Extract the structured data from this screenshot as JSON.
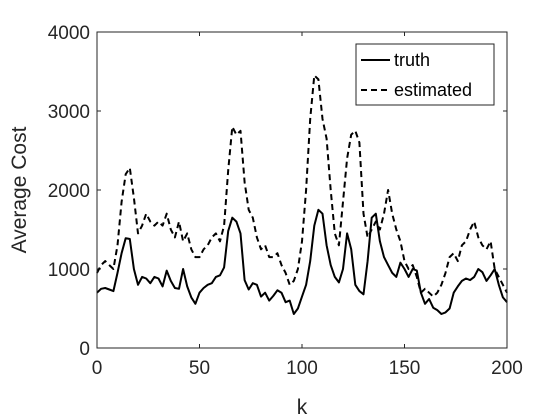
{
  "chart_data": {
    "type": "line",
    "title": "",
    "xlabel": "k",
    "ylabel": "Average Cost",
    "xlim": [
      0,
      200
    ],
    "ylim": [
      0,
      4000
    ],
    "xticks": [
      0,
      50,
      100,
      150,
      200
    ],
    "yticks": [
      0,
      1000,
      2000,
      3000,
      4000
    ],
    "grid": false,
    "legend_position": "top-right",
    "series": [
      {
        "name": "truth",
        "style": "solid",
        "color": "#000000",
        "x": [
          0,
          2,
          4,
          6,
          8,
          10,
          12,
          14,
          16,
          18,
          20,
          22,
          24,
          26,
          28,
          30,
          32,
          34,
          36,
          38,
          40,
          42,
          44,
          46,
          48,
          50,
          52,
          54,
          56,
          58,
          60,
          62,
          64,
          66,
          68,
          70,
          72,
          74,
          76,
          78,
          80,
          82,
          84,
          86,
          88,
          90,
          92,
          94,
          96,
          98,
          100,
          102,
          104,
          106,
          108,
          110,
          112,
          114,
          116,
          118,
          120,
          122,
          124,
          126,
          128,
          130,
          132,
          134,
          136,
          138,
          140,
          142,
          144,
          146,
          148,
          150,
          152,
          154,
          156,
          158,
          160,
          162,
          164,
          166,
          168,
          170,
          172,
          174,
          176,
          178,
          180,
          182,
          184,
          186,
          188,
          190,
          192,
          194,
          196,
          198,
          200
        ],
        "y": [
          700,
          750,
          760,
          740,
          720,
          950,
          1200,
          1390,
          1380,
          1000,
          800,
          900,
          880,
          820,
          900,
          880,
          780,
          980,
          850,
          760,
          750,
          1000,
          780,
          640,
          560,
          700,
          760,
          800,
          820,
          900,
          920,
          1020,
          1480,
          1650,
          1600,
          1450,
          860,
          740,
          820,
          800,
          650,
          700,
          600,
          660,
          730,
          700,
          580,
          600,
          430,
          500,
          650,
          800,
          1100,
          1550,
          1750,
          1700,
          1300,
          1050,
          900,
          830,
          1000,
          1450,
          1250,
          800,
          720,
          680,
          1100,
          1650,
          1700,
          1350,
          1150,
          1050,
          950,
          900,
          1080,
          1000,
          900,
          1000,
          980,
          700,
          560,
          620,
          510,
          480,
          430,
          450,
          500,
          700,
          780,
          850,
          880,
          860,
          900,
          1000,
          960,
          850,
          920,
          1000,
          800,
          640,
          580
        ]
      },
      {
        "name": "estimated",
        "style": "dashed",
        "color": "#000000",
        "x": [
          0,
          2,
          4,
          6,
          8,
          10,
          12,
          14,
          16,
          18,
          20,
          22,
          24,
          26,
          28,
          30,
          32,
          34,
          36,
          38,
          40,
          42,
          44,
          46,
          48,
          50,
          52,
          54,
          56,
          58,
          60,
          62,
          64,
          66,
          68,
          70,
          72,
          74,
          76,
          78,
          80,
          82,
          84,
          86,
          88,
          90,
          92,
          94,
          96,
          98,
          100,
          102,
          104,
          106,
          108,
          110,
          112,
          114,
          116,
          118,
          120,
          122,
          124,
          126,
          128,
          130,
          132,
          134,
          136,
          138,
          140,
          142,
          144,
          146,
          148,
          150,
          152,
          154,
          156,
          158,
          160,
          162,
          164,
          166,
          168,
          170,
          172,
          174,
          176,
          178,
          180,
          182,
          184,
          186,
          188,
          190,
          192,
          194,
          196,
          198,
          200
        ],
        "y": [
          950,
          1050,
          1100,
          1050,
          1000,
          1300,
          1850,
          2200,
          2280,
          1900,
          1450,
          1550,
          1700,
          1600,
          1550,
          1600,
          1550,
          1700,
          1500,
          1400,
          1600,
          1350,
          1450,
          1250,
          1150,
          1150,
          1250,
          1300,
          1400,
          1450,
          1350,
          1550,
          2250,
          2800,
          2700,
          2750,
          2100,
          1750,
          1650,
          1400,
          1250,
          1300,
          1150,
          1150,
          1200,
          1050,
          950,
          800,
          850,
          1000,
          1350,
          2000,
          2900,
          3450,
          3400,
          2900,
          2650,
          2000,
          1450,
          1300,
          1850,
          2400,
          2700,
          2750,
          2600,
          1700,
          1400,
          1500,
          1600,
          1500,
          1700,
          2000,
          1700,
          1500,
          1350,
          1100,
          1000,
          1050,
          900,
          700,
          750,
          700,
          650,
          700,
          800,
          950,
          1150,
          1200,
          1100,
          1300,
          1350,
          1500,
          1600,
          1400,
          1300,
          1250,
          1350,
          1000,
          900,
          800,
          700
        ]
      }
    ]
  }
}
